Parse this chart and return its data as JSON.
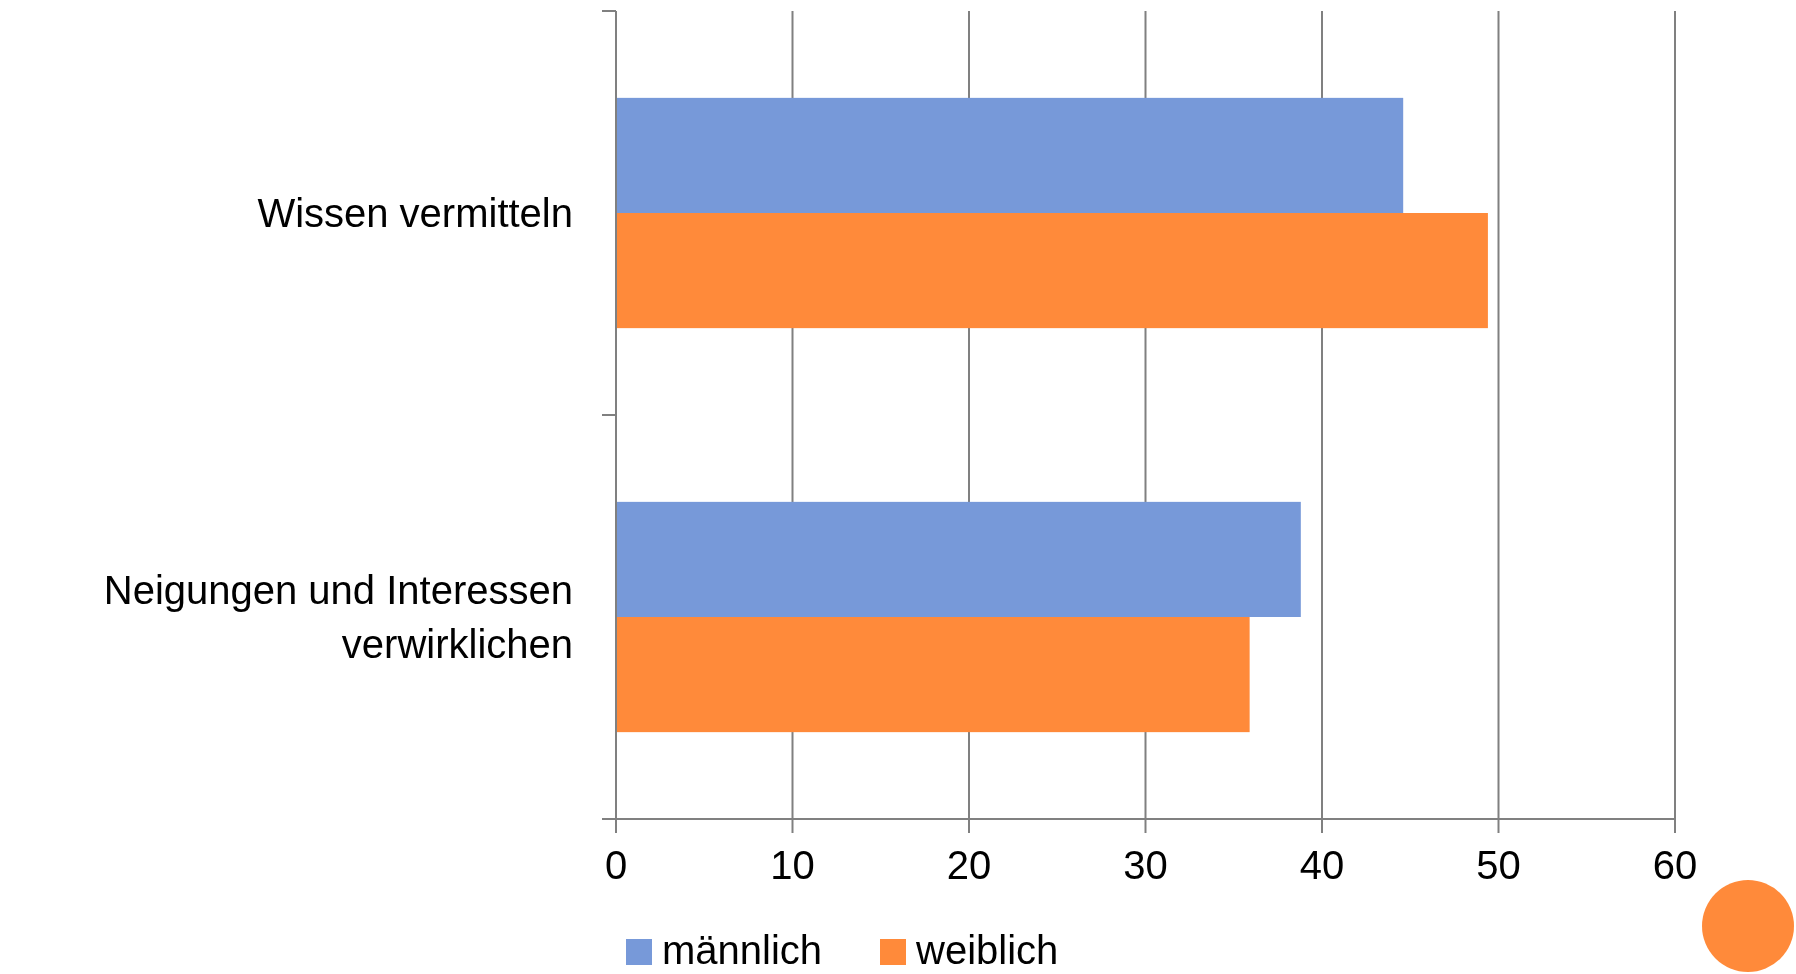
{
  "chart_data": {
    "type": "bar",
    "orientation": "horizontal",
    "categories": [
      "Wissen vermitteln",
      "Neigungen und Interessen verwirklichen"
    ],
    "series": [
      {
        "name": "männlich",
        "color": "#7799d9",
        "values": [
          44.6,
          38.8
        ]
      },
      {
        "name": "weiblich",
        "color": "#ff8a3a",
        "values": [
          49.4,
          35.9
        ]
      }
    ],
    "xlim": [
      0,
      60
    ],
    "xticks": [
      0,
      10,
      20,
      30,
      40,
      50,
      60
    ],
    "grid": "x",
    "legend": "bottom"
  }
}
